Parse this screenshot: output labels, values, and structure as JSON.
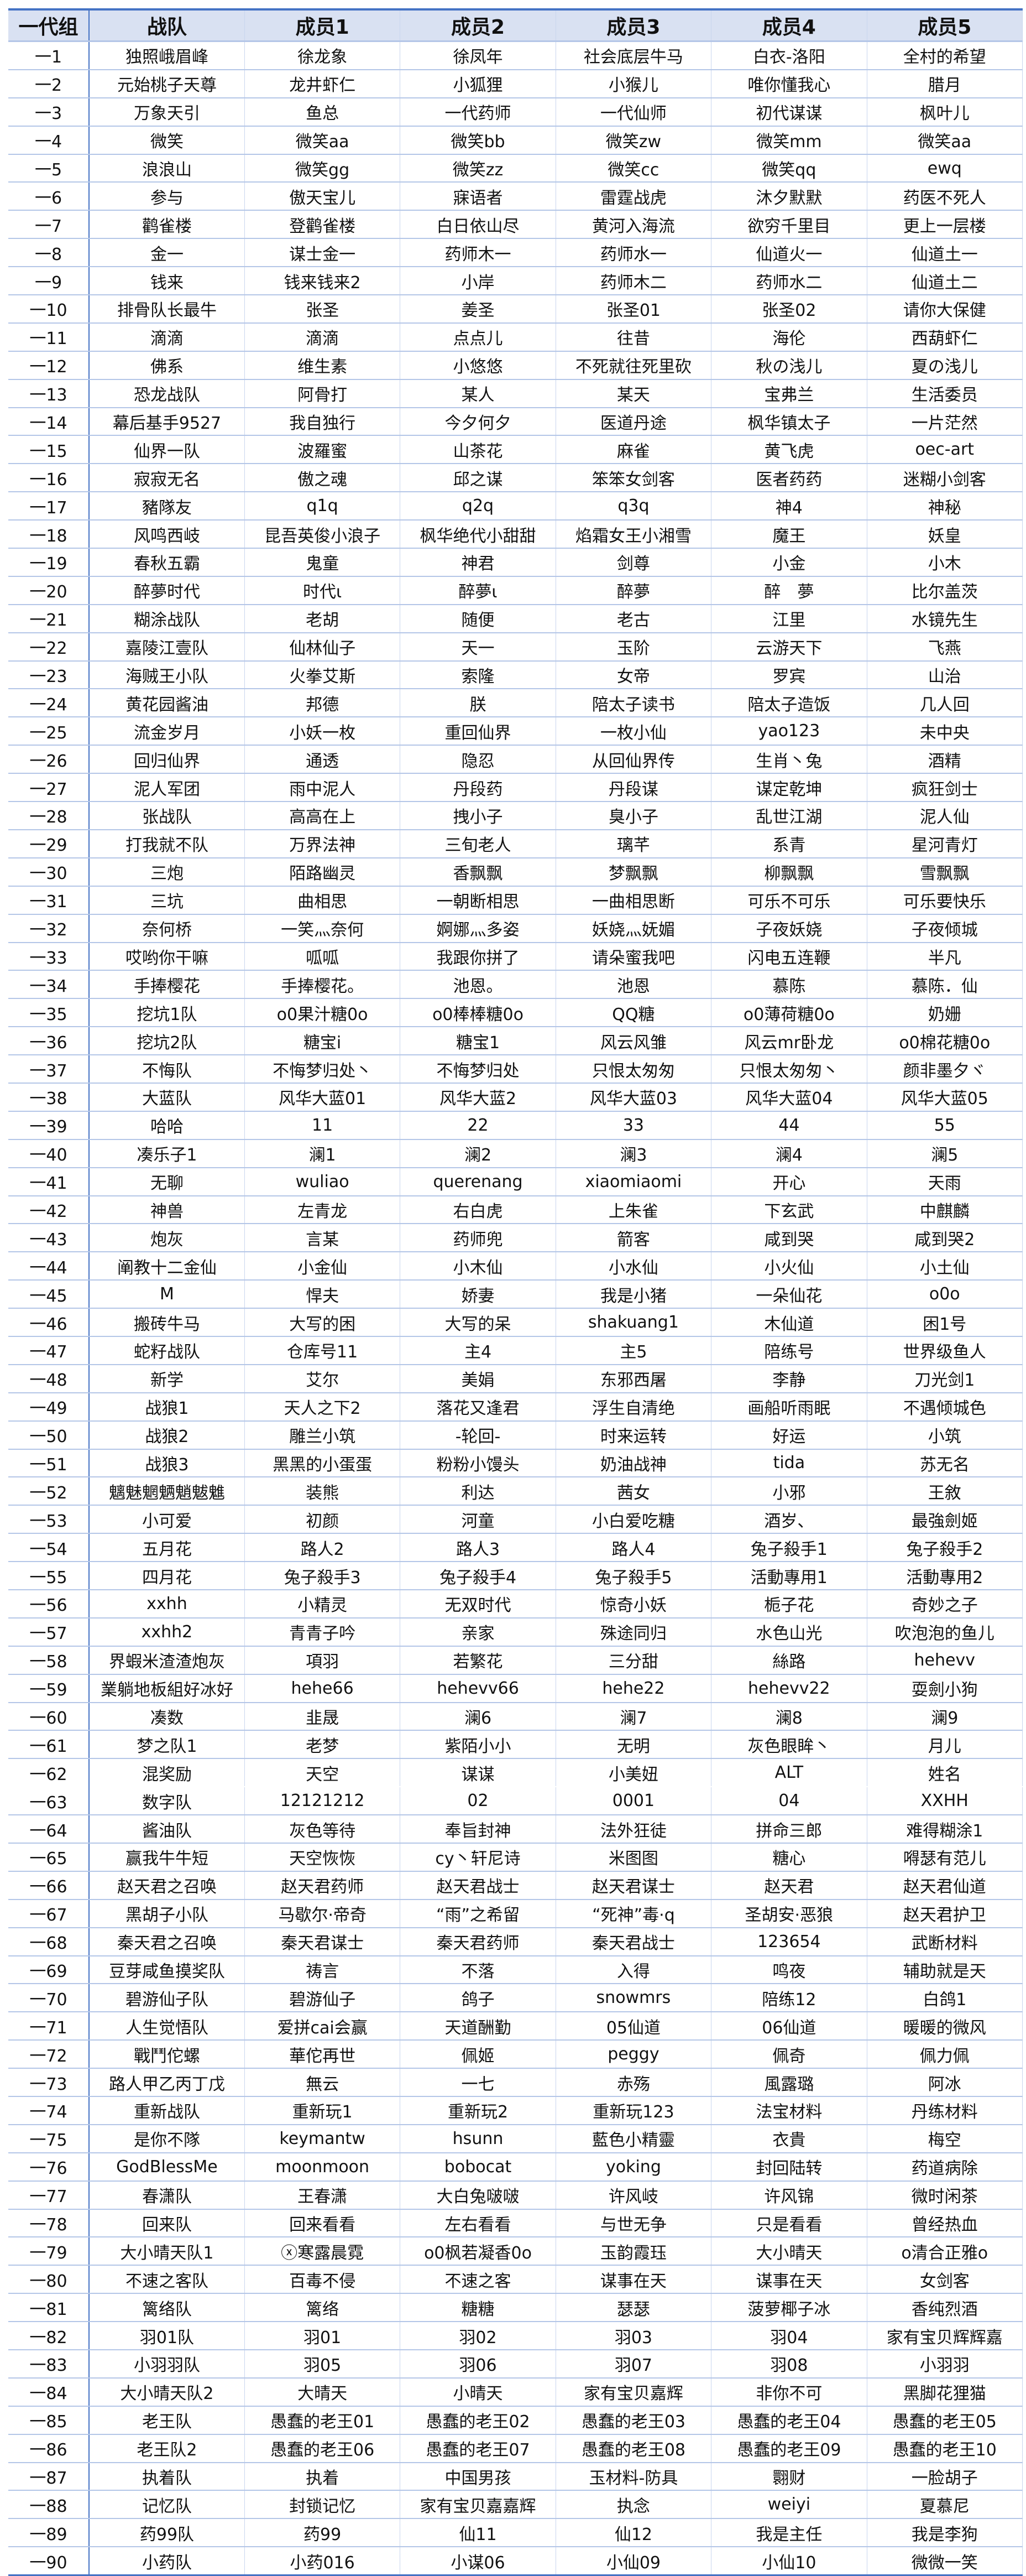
{
  "colors": {
    "header_bg": "#d9e1f2",
    "accent": "#4472c4",
    "grid": "#b4c6e7"
  },
  "headers": [
    "一代组",
    "战队",
    "成员1",
    "成员2",
    "成员3",
    "成员4",
    "成员5"
  ],
  "rows": [
    [
      "一1",
      "独照峨眉峰",
      "徐龙象",
      "徐凤年",
      "社会底层牛马",
      "白衣-洛阳",
      "全村的希望"
    ],
    [
      "一2",
      "元始桃子天尊",
      "龙井虾仁",
      "小狐狸",
      "小猴儿",
      "唯你懂我心",
      "腊月"
    ],
    [
      "一3",
      "万象天引",
      "鱼总",
      "一代药师",
      "一代仙师",
      "初代谋谋",
      "枫叶儿"
    ],
    [
      "一4",
      "微笑",
      "微笑aa",
      "微笑bb",
      "微笑zw",
      "微笑mm",
      "微笑aa"
    ],
    [
      "一5",
      "浪浪山",
      "微笑gg",
      "微笑zz",
      "微笑cc",
      "微笑qq",
      "ewq"
    ],
    [
      "一6",
      "参与",
      "傲天宝儿",
      "寐语者",
      "雷霆战虎",
      "沐夕默默",
      "药医不死人"
    ],
    [
      "一7",
      "鹳雀楼",
      "登鹳雀楼",
      "白日依山尽",
      "黄河入海流",
      "欲穷千里目",
      "更上一层楼"
    ],
    [
      "一8",
      "金一",
      "谋士金一",
      "药师木一",
      "药师水一",
      "仙道火一",
      "仙道土一"
    ],
    [
      "一9",
      "钱来",
      "钱来钱来2",
      "小岸",
      "药师木二",
      "药师水二",
      "仙道土二"
    ],
    [
      "一10",
      "排骨队长最牛",
      "张圣",
      "姜圣",
      "张圣01",
      "张圣02",
      "请你大保健"
    ],
    [
      "一11",
      "滴滴",
      "滴滴",
      "点点儿",
      "往昔",
      "海伦",
      "西葫虾仁"
    ],
    [
      "一12",
      "佛系",
      "维生素",
      "小悠悠",
      "不死就往死里砍",
      "秋の浅儿",
      "夏の浅儿"
    ],
    [
      "一13",
      "恐龙战队",
      "阿骨打",
      "某人",
      "某天",
      "宝弗兰",
      "生活委员"
    ],
    [
      "一14",
      "幕后基手9527",
      "我自独行",
      "今夕何夕",
      "医道丹途",
      "枫华镇太子",
      "一片茫然"
    ],
    [
      "一15",
      "仙界一队",
      "波羅蜜",
      "山茶花",
      "麻雀",
      "黄飞虎",
      "oec-art"
    ],
    [
      "一16",
      "寂寂无名",
      "傲之魂",
      "邱之谋",
      "笨笨女剑客",
      "医者药药",
      "迷糊小剑客"
    ],
    [
      "一17",
      "豬隊友",
      "q1q",
      "q2q",
      "q3q",
      "神4",
      "神秘"
    ],
    [
      "一18",
      "风鸣西岐",
      "昆吾英俊小浪子",
      "枫华绝代小甜甜",
      "焰霜女王小湘雪",
      "魔王",
      "妖皇"
    ],
    [
      "一19",
      "春秋五霸",
      "鬼童",
      "神君",
      "剑尊",
      "小金",
      "小木"
    ],
    [
      "一20",
      "醉夢时代",
      "时代ι",
      "醉夢ι",
      "醉夢",
      "醉　夢",
      "比尔盖茨"
    ],
    [
      "一21",
      "糊涂战队",
      "老胡",
      "随便",
      "老古",
      "江里",
      "水镜先生"
    ],
    [
      "一22",
      "嘉陵江壹队",
      "仙林仙子",
      "天一",
      "玉阶",
      "云游天下",
      "飞燕"
    ],
    [
      "一23",
      "海贼王小队",
      "火拳艾斯",
      "索隆",
      "女帝",
      "罗宾",
      "山治"
    ],
    [
      "一24",
      "黄花园酱油",
      "邦德",
      "朕",
      "陪太子读书",
      "陪太子造饭",
      "几人回"
    ],
    [
      "一25",
      "流金岁月",
      "小妖一枚",
      "重回仙界",
      "一枚小仙",
      "yao123",
      "未中央"
    ],
    [
      "一26",
      "回归仙界",
      "通透",
      "隐忍",
      "从回仙界传",
      "生肖丶兔",
      "酒精"
    ],
    [
      "一27",
      "泥人军团",
      "雨中泥人",
      "丹段药",
      "丹段谋",
      "谋定乾坤",
      "疯狂剑士"
    ],
    [
      "一28",
      "张战队",
      "高高在上",
      "拽小子",
      "臭小子",
      "乱世江湖",
      "泥人仙"
    ],
    [
      "一29",
      "打我就不队",
      "万界法神",
      "三旬老人",
      "璃芊",
      "系青",
      "星河青灯"
    ],
    [
      "一30",
      "三炮",
      "陌路幽灵",
      "香飘飘",
      "梦飘飘",
      "柳飘飘",
      "雪飘飘"
    ],
    [
      "一31",
      "三坑",
      "曲相思",
      "一朝断相思",
      "一曲相思断",
      "可乐不可乐",
      "可乐要快乐"
    ],
    [
      "一32",
      "奈何桥",
      "一笑灬奈何",
      "婀娜灬多姿",
      "妖娆灬妩媚",
      "子夜妖娆",
      "子夜倾城"
    ],
    [
      "一33",
      "哎哟你干嘛",
      "呱呱",
      "我跟你拼了",
      "请朵蜜我吧",
      "闪电五连鞭",
      "半凡"
    ],
    [
      "一34",
      "手捧樱花",
      "手捧樱花。",
      "池恩。",
      "池恩",
      "慕陈",
      "慕陈．仙"
    ],
    [
      "一35",
      "挖坑1队",
      "o0果汁糖0o",
      "o0棒棒糖0o",
      "QQ糖",
      "o0薄荷糖0o",
      "奶姗"
    ],
    [
      "一36",
      "挖坑2队",
      "糖宝i",
      "糖宝1",
      "风云风雏",
      "风云mr卧龙",
      "o0棉花糖0o"
    ],
    [
      "一37",
      "不悔队",
      "不悔梦归处丶",
      "不悔梦归处",
      "只恨太匆匆",
      "只恨太匆匆丶",
      "颜非墨夕ヾ"
    ],
    [
      "一38",
      "大蓝队",
      "风华大蓝01",
      "风华大蓝2",
      "风华大蓝03",
      "风华大蓝04",
      "风华大蓝05"
    ],
    [
      "一39",
      "哈哈",
      "11",
      "22",
      "33",
      "44",
      "55"
    ],
    [
      "一40",
      "凑乐子1",
      "澜1",
      "澜2",
      "澜3",
      "澜4",
      "澜5"
    ],
    [
      "一41",
      "无聊",
      "wuliao",
      "querenang",
      "xiaomiaomi",
      "开心",
      "天雨"
    ],
    [
      "一42",
      "神兽",
      "左青龙",
      "右白虎",
      "上朱雀",
      "下玄武",
      "中麒麟"
    ],
    [
      "一43",
      "炮灰",
      "言某",
      "药师兜",
      "箭客",
      "咸到哭",
      "咸到哭2"
    ],
    [
      "一44",
      "阐教十二金仙",
      "小金仙",
      "小木仙",
      "小水仙",
      "小火仙",
      "小土仙"
    ],
    [
      "一45",
      "M",
      "悍夫",
      "娇妻",
      "我是小猪",
      "一朵仙花",
      "o0o"
    ],
    [
      "一46",
      "搬砖牛马",
      "大写的困",
      "大写的呆",
      "shakuang1",
      "木仙道",
      "困1号"
    ],
    [
      "一47",
      "蛇籽战队",
      "仓库号11",
      "主4",
      "主5",
      "陪练号",
      "世界级鱼人"
    ],
    [
      "一48",
      "新学",
      "艾尔",
      "美娟",
      "东邪西屠",
      "李静",
      "刀光剑1"
    ],
    [
      "一49",
      "战狼1",
      "天人之下2",
      "落花又逢君",
      "浮生自清绝",
      "画船听雨眠",
      "不遇倾城色"
    ],
    [
      "一50",
      "战狼2",
      "雕兰小筑",
      "-轮回-",
      "时来运转",
      "好运",
      "小筑"
    ],
    [
      "一51",
      "战狼3",
      "黑黑的小蛋蛋",
      "粉粉小馒头",
      "奶油战神",
      "tida",
      "苏无名"
    ],
    [
      "一52",
      "魑魅魍魉魈魃魋",
      "装熊",
      "利达",
      "茜女",
      "小邪",
      "王敘"
    ],
    [
      "一53",
      "小可爱",
      "初颜",
      "河童",
      "小白爱吃糖",
      "酒岁、",
      "最強劍姬"
    ],
    [
      "一54",
      "五月花",
      "路人2",
      "路人3",
      "路人4",
      "兔子殺手1",
      "兔子殺手2"
    ],
    [
      "一55",
      "四月花",
      "兔子殺手3",
      "兔子殺手4",
      "兔子殺手5",
      "活動專用1",
      "活動專用2"
    ],
    [
      "一56",
      "xxhh",
      "小精灵",
      "无双时代",
      "惊奇小妖",
      "栀子花",
      "奇妙之子"
    ],
    [
      "一57",
      "xxhh2",
      "青青子吟",
      "亲家",
      "殊途同归",
      "水色山光",
      "吹泡泡的鱼儿"
    ],
    [
      "一58",
      "界蝦米渣渣炮灰",
      "項羽",
      "若繁花",
      "三分甜",
      "絲路",
      "hehevv"
    ],
    [
      "一59",
      "業躺地板組好冰好",
      "hehe66",
      "hehevv66",
      "hehe22",
      "hehevv22",
      "耍劍小狗"
    ],
    [
      "一60",
      "凑数",
      "韭晟",
      "澜6",
      "澜7",
      "澜8",
      "澜9"
    ],
    [
      "一61",
      "梦之队1",
      "老梦",
      "紫陌小小",
      "无明",
      "灰色眼眸丶",
      "月儿"
    ],
    [
      "一62",
      "混奖励",
      "天空",
      "谋谋",
      "小美妞",
      "ALT",
      "姓名"
    ],
    [
      "一63",
      "数字队",
      "12121212",
      "02",
      "0001",
      "04",
      "XXHH"
    ],
    [
      "一64",
      "酱油队",
      "灰色等待",
      "奉旨封神",
      "法外狂徒",
      "拼命三郎",
      "难得糊涂1"
    ],
    [
      "一65",
      "赢我牛牛短",
      "天空恢恢",
      "cy丶轩尼诗",
      "米图图",
      "糖心",
      "嘚瑟有范儿"
    ],
    [
      "一66",
      "赵天君之召唤",
      "赵天君药师",
      "赵天君战士",
      "赵天君谋士",
      "赵天君",
      "赵天君仙道"
    ],
    [
      "一67",
      "黑胡子小队",
      "马歇尔·帝奇",
      "“雨”之希留",
      "“死神”毒·q",
      "圣胡安·恶狼",
      "赵天君护卫"
    ],
    [
      "一68",
      "秦天君之召唤",
      "秦天君谋士",
      "秦天君药师",
      "秦天君战士",
      "123654",
      "武断材料"
    ],
    [
      "一69",
      "豆芽咸鱼摸奖队",
      "祷言",
      "不落",
      "入得",
      "鸣夜",
      "辅助就是天"
    ],
    [
      "一70",
      "碧游仙子队",
      "碧游仙子",
      "鸽子",
      "snowmrs",
      "陪练12",
      "白鸽1"
    ],
    [
      "一71",
      "人生觉悟队",
      "爱拼cai会赢",
      "天道酬勤",
      "05仙道",
      "06仙道",
      "暖暖的微风"
    ],
    [
      "一72",
      "戰鬥佗螺",
      "華佗再世",
      "佩姬",
      "peggy",
      "佩奇",
      "佩力佩"
    ],
    [
      "一73",
      "路人甲乙丙丁戊",
      "無云",
      "一七",
      "赤殇",
      "風露璐",
      "阿冰"
    ],
    [
      "一74",
      "重新战队",
      "重新玩1",
      "重新玩2",
      "重新玩123",
      "法宝材料",
      "丹练材料"
    ],
    [
      "一75",
      "是你不隊",
      "keymantw",
      "hsunn",
      "藍色小精靈",
      "衣貴",
      "梅空"
    ],
    [
      "一76",
      "GodBlessMe",
      "moonmoon",
      "bobocat",
      "yoking",
      "封回陆转",
      "药道病除"
    ],
    [
      "一77",
      "春潇队",
      "王春潇",
      "大白兔啵啵",
      "许风岐",
      "许风锦",
      "微时闲茶"
    ],
    [
      "一78",
      "回来队",
      "回来看看",
      "左右看看",
      "与世无争",
      "只是看看",
      "曾经热血"
    ],
    [
      "一79",
      "大小晴天队1",
      "ⓧ寒露晨霓",
      "o0枫若凝香0o",
      "玉韵霞珏",
      "大小晴天",
      "o清合正雅o"
    ],
    [
      "一80",
      "不速之客队",
      "百毒不侵",
      "不速之客",
      "谋事在天",
      "谋事在天",
      "女剑客"
    ],
    [
      "一81",
      "篱络队",
      "篱络",
      "糖糖",
      "瑟瑟",
      "菠萝椰子冰",
      "香纯烈酒"
    ],
    [
      "一82",
      "羽01队",
      "羽01",
      "羽02",
      "羽03",
      "羽04",
      "家有宝贝辉辉嘉"
    ],
    [
      "一83",
      "小羽羽队",
      "羽05",
      "羽06",
      "羽07",
      "羽08",
      "小羽羽"
    ],
    [
      "一84",
      "大小晴天队2",
      "大晴天",
      "小晴天",
      "家有宝贝嘉辉",
      "非你不可",
      "黑脚花狸猫"
    ],
    [
      "一85",
      "老王队",
      "愚蠢的老王01",
      "愚蠢的老王02",
      "愚蠢的老王03",
      "愚蠢的老王04",
      "愚蠢的老王05"
    ],
    [
      "一86",
      "老王队2",
      "愚蠢的老王06",
      "愚蠢的老王07",
      "愚蠢的老王08",
      "愚蠢的老王09",
      "愚蠢的老王10"
    ],
    [
      "一87",
      "执着队",
      "执着",
      "中国男孩",
      "玉材料-防具",
      "翾财",
      "一脸胡子"
    ],
    [
      "一88",
      "记忆队",
      "封锁记忆",
      "家有宝贝嘉嘉辉",
      "执念",
      "weiyi",
      "夏慕尼"
    ],
    [
      "一89",
      "药99队",
      "药99",
      "仙11",
      "仙12",
      "我是主任",
      "我是李狗"
    ],
    [
      "一90",
      "小药队",
      "小药016",
      "小谋06",
      "小仙09",
      "小仙10",
      "微微一笑"
    ]
  ]
}
